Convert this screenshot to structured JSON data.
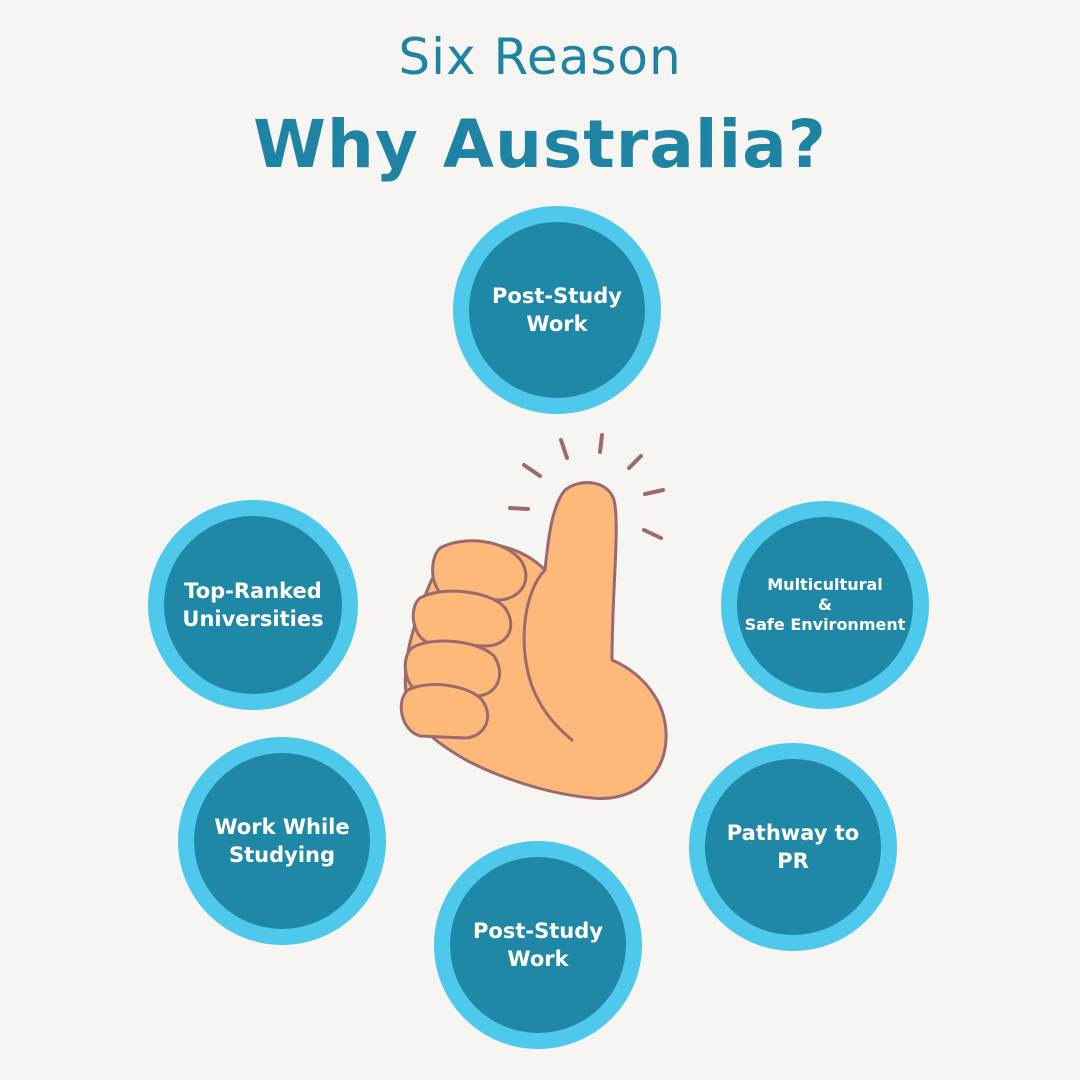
{
  "heading": {
    "subtitle": "Six Reason",
    "title": "Why Australia?"
  },
  "reasons": [
    {
      "lines": [
        "Post-Study",
        "Work"
      ]
    },
    {
      "lines": [
        "Top-Ranked",
        "Universities"
      ]
    },
    {
      "lines": [
        "Multicultural",
        "&",
        "Safe Environment"
      ]
    },
    {
      "lines": [
        "Work While",
        "Studying"
      ]
    },
    {
      "lines": [
        "Pathway to",
        "PR"
      ]
    },
    {
      "lines": [
        "Post-Study",
        "Work"
      ]
    }
  ],
  "colors": {
    "background": "#f6f5f2",
    "heading": "#1f84a4",
    "circle_ring": "#4ec8eb",
    "circle_fill": "#2088a7",
    "circle_text": "#ffffff",
    "thumb_skin": "#fdb97a",
    "thumb_outline": "#9b6a6f"
  },
  "icons": {
    "center": "thumbs-up-icon"
  }
}
